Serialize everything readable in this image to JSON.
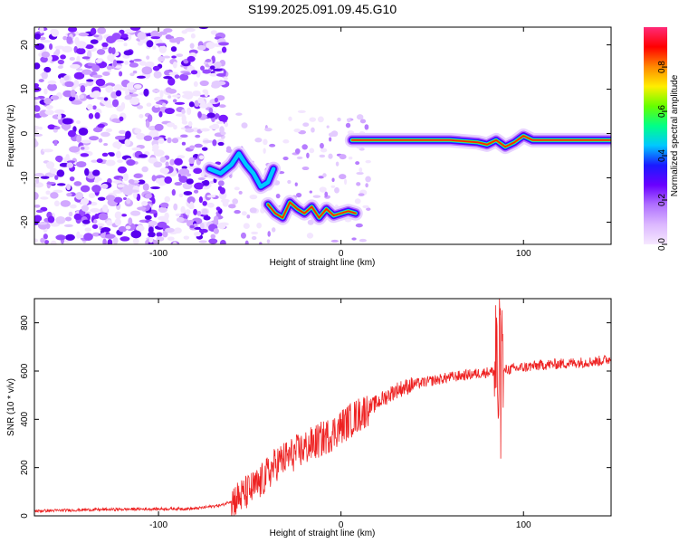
{
  "title": "S199.2025.091.09.45.G10",
  "colors": {
    "line": "#ee2222",
    "axis": "#000000",
    "colormap": [
      "#f6e8ff",
      "#dcb8ff",
      "#b070ff",
      "#6a00ff",
      "#1a1aff",
      "#00c8ff",
      "#00ff88",
      "#66ff00",
      "#ffee00",
      "#ff8800",
      "#ff0000",
      "#ff2a78"
    ]
  },
  "chart_data": [
    {
      "type": "heatmap",
      "xlabel": "Height of straight line (km)",
      "ylabel": "Frequency (Hz)",
      "xlim": [
        -168,
        148
      ],
      "ylim": [
        -25,
        24
      ],
      "xticks": [
        -100,
        0,
        100
      ],
      "yticks": [
        -20,
        -10,
        0,
        10,
        20
      ],
      "colorbar": {
        "label": "Normalized spectral amplitude",
        "range": [
          0,
          0.98
        ],
        "ticks": [
          0,
          0.2,
          0.4,
          0.6,
          0.8
        ]
      },
      "ridges": [
        {
          "x": [
            -72,
            -66,
            -60,
            -56,
            -52,
            -48,
            -44,
            -40,
            -37
          ],
          "y": [
            -8,
            -9,
            -7,
            -4.5,
            -7,
            -9,
            -12,
            -11,
            -8
          ]
        },
        {
          "x": [
            -40,
            -36,
            -32,
            -28,
            -24,
            -20,
            -16,
            -12,
            -8,
            -4,
            0,
            4,
            8
          ],
          "y": [
            -16,
            -18,
            -19,
            -15.5,
            -17,
            -18,
            -16.5,
            -19,
            -17,
            -18.5,
            -18,
            -17.5,
            -18
          ]
        },
        {
          "x": [
            6,
            20,
            40,
            60,
            75,
            80,
            85,
            90,
            95,
            100,
            105,
            115,
            130,
            148
          ],
          "y": [
            -1.5,
            -1.5,
            -1.5,
            -1.5,
            -2,
            -2.5,
            -1.5,
            -3,
            -2,
            -0.5,
            -1.5,
            -1.5,
            -1.5,
            -1.5
          ]
        }
      ]
    },
    {
      "type": "line",
      "xlabel": "Height of straight line (km)",
      "ylabel": "SNR (10 * v/v)",
      "xlim": [
        -168,
        148
      ],
      "ylim": [
        0,
        900
      ],
      "xticks": [
        -100,
        0,
        100
      ],
      "yticks": [
        0,
        200,
        400,
        600,
        800
      ],
      "series": [
        {
          "x": [
            -168,
            -140,
            -110,
            -80,
            -65,
            -55,
            -45,
            -35,
            -25,
            -15,
            -5,
            0,
            10,
            20,
            30,
            40,
            50,
            60,
            70,
            80,
            85,
            87,
            90,
            100,
            110,
            120,
            130,
            140,
            148
          ],
          "y": [
            20,
            25,
            28,
            30,
            45,
            80,
            130,
            220,
            260,
            300,
            340,
            370,
            420,
            470,
            520,
            545,
            560,
            575,
            585,
            595,
            600,
            560,
            605,
            615,
            625,
            630,
            635,
            640,
            650
          ]
        }
      ]
    }
  ]
}
